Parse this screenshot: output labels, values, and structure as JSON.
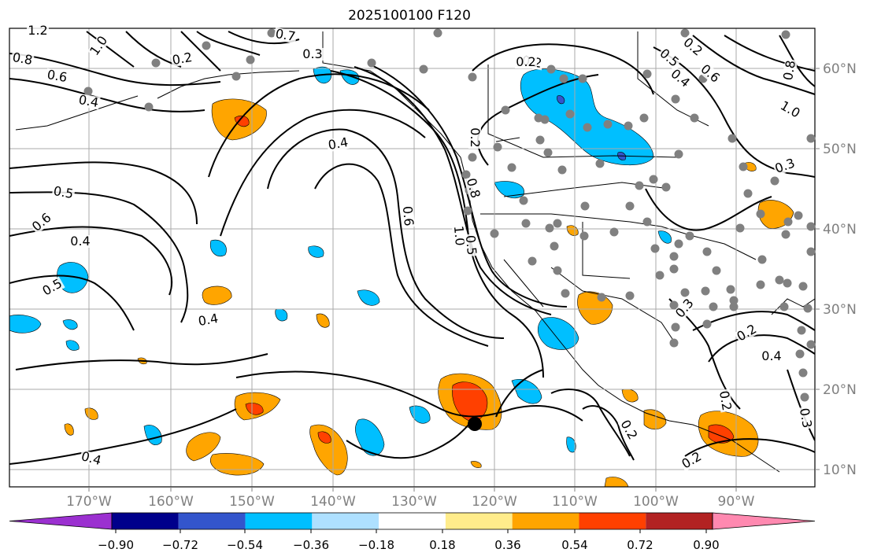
{
  "title": "2025100100 F120",
  "x_ticks": [
    "170°W",
    "160°W",
    "150°W",
    "140°W",
    "130°W",
    "120°W",
    "110°W",
    "100°W",
    "90°W"
  ],
  "y_ticks": [
    "60°N",
    "50°N",
    "40°N",
    "30°N",
    "20°N",
    "10°N"
  ],
  "colorbar": {
    "ticks": [
      "−0.90",
      "−0.72",
      "−0.54",
      "−0.36",
      "−0.18",
      "0.18",
      "0.36",
      "0.54",
      "0.72",
      "0.90"
    ],
    "colors": [
      "#9b30d0",
      "#00008b",
      "#3355cc",
      "#00bfff",
      "#aee0ff",
      "#ffffff",
      "#ffec8b",
      "#ffa500",
      "#ff4000",
      "#b22222",
      "#ff89b0"
    ]
  },
  "contour_labels": [
    "1.2",
    "1.0",
    "0.8",
    "0.6",
    "0.4",
    "0.2",
    "0.7",
    "0.4",
    "0.3",
    "0.2",
    "0.5",
    "0.6",
    "0.4",
    "0.5",
    "0.4",
    "0.6",
    "1.0",
    "0.5",
    "0.8",
    "0.2",
    "0.2",
    "0.5",
    "0.4",
    "0.6",
    "0.8",
    "1.0",
    "0.3",
    "0.3",
    "0.2",
    "0.4",
    "0.3",
    "0.2",
    "0.2",
    "0.4",
    "0.2",
    "0.2"
  ],
  "marker": {
    "lon": -122.5,
    "lat": 15.8
  }
}
